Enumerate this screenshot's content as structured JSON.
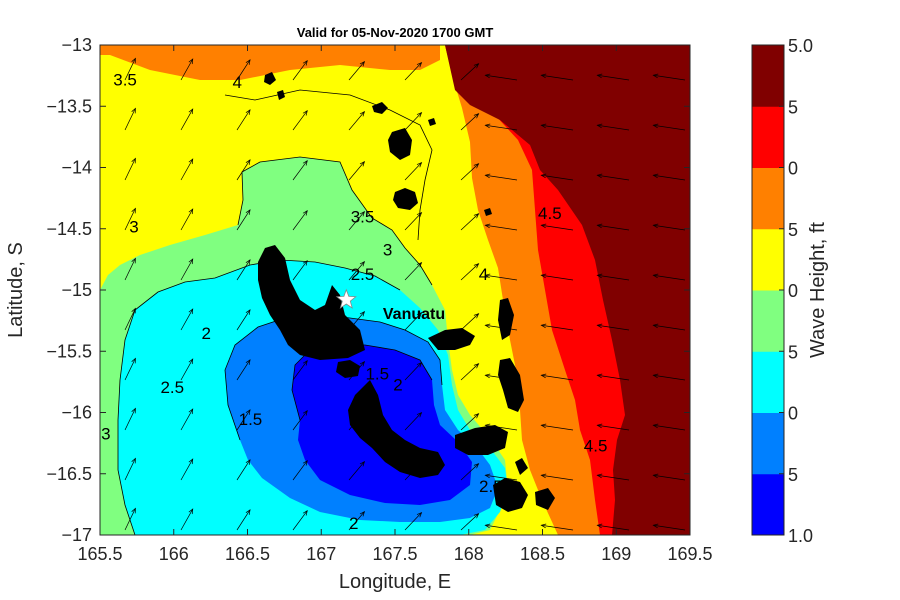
{
  "chart_data": {
    "type": "heatmap",
    "title": "Valid for 05-Nov-2020 1700 GMT",
    "xlabel": "Longitude, E",
    "ylabel": "Latitude, S",
    "xlim": [
      165.5,
      169.5
    ],
    "ylim": [
      -17,
      -13
    ],
    "x_ticks": [
      "165.5",
      "166",
      "166.5",
      "167",
      "167.5",
      "168",
      "168.5",
      "169",
      "169.5"
    ],
    "y_ticks": [
      "-13",
      "-13.5",
      "-14",
      "-14.5",
      "-15",
      "-15.5",
      "-16",
      "-16.5",
      "-17"
    ],
    "colorbar": {
      "label": "Wave Height, ft",
      "range": [
        1.0,
        5.0
      ],
      "tick_labels": [
        "5.0",
        "5",
        "0",
        "5",
        "0",
        "5",
        "0",
        "5",
        "1.0"
      ],
      "levels": [
        1.0,
        1.5,
        2.0,
        2.5,
        3.0,
        3.5,
        4.0,
        4.5,
        5.0
      ],
      "colors": [
        "#0000ff",
        "#0080ff",
        "#00ffff",
        "#80ff80",
        "#ffff00",
        "#ff8000",
        "#ff0000",
        "#800000"
      ]
    },
    "contour_labels": [
      {
        "text": "3.5",
        "lon": 165.67,
        "lat": -13.33
      },
      {
        "text": "4",
        "lon": 166.43,
        "lat": -13.35
      },
      {
        "text": "3",
        "lon": 165.73,
        "lat": -14.53
      },
      {
        "text": "2.5",
        "lon": 167.28,
        "lat": -14.92
      },
      {
        "text": "3.5",
        "lon": 167.28,
        "lat": -14.45
      },
      {
        "text": "3",
        "lon": 167.45,
        "lat": -14.72
      },
      {
        "text": "4.5",
        "lon": 168.55,
        "lat": -14.42
      },
      {
        "text": "4",
        "lon": 168.1,
        "lat": -14.92
      },
      {
        "text": "2",
        "lon": 166.22,
        "lat": -15.4
      },
      {
        "text": "2.5",
        "lon": 165.99,
        "lat": -15.84
      },
      {
        "text": "3",
        "lon": 165.54,
        "lat": -16.22
      },
      {
        "text": "1.5",
        "lon": 166.52,
        "lat": -16.1
      },
      {
        "text": "1.5",
        "lon": 167.38,
        "lat": -15.73
      },
      {
        "text": "2",
        "lon": 167.52,
        "lat": -15.82
      },
      {
        "text": "2",
        "lon": 167.22,
        "lat": -16.95
      },
      {
        "text": "2.5",
        "lon": 168.15,
        "lat": -16.65
      },
      {
        "text": "4",
        "lon": 168.26,
        "lat": -16.8
      },
      {
        "text": "4.5",
        "lon": 168.86,
        "lat": -16.32
      }
    ],
    "place_label": "Vanuatu",
    "location_marker": {
      "lon": 167.17,
      "lat": -15.08
    },
    "wind_vectors": true,
    "grid": false
  }
}
